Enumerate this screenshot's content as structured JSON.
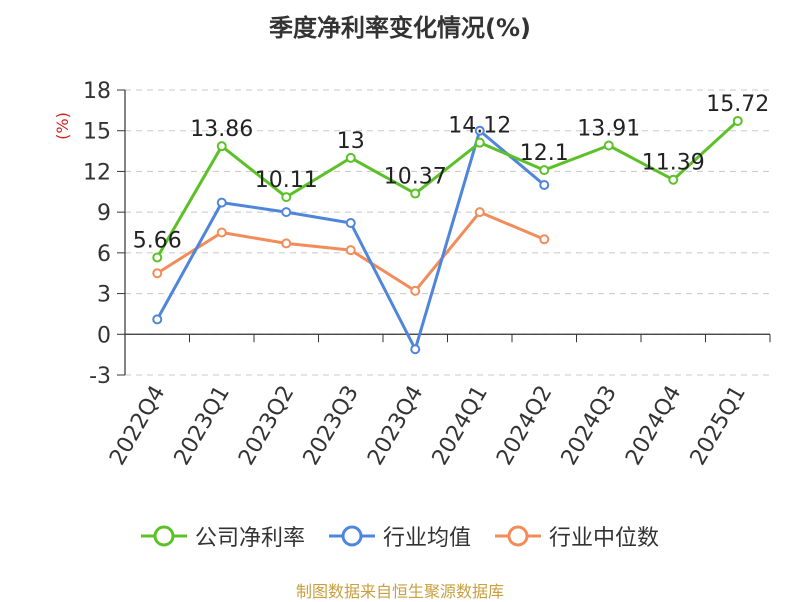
{
  "chart_data": {
    "type": "line",
    "title": "季度净利率变化情况(%)",
    "ylabel": "(%)",
    "xlabel": "",
    "ylim": [
      -3,
      18
    ],
    "yticks": [
      -3,
      0,
      3,
      6,
      9,
      12,
      15,
      18
    ],
    "grid": true,
    "legend_position": "bottom",
    "categories": [
      "2022Q4",
      "2023Q1",
      "2023Q2",
      "2023Q3",
      "2023Q4",
      "2024Q1",
      "2024Q2",
      "2024Q3",
      "2024Q4",
      "2025Q1"
    ],
    "series": [
      {
        "name": "公司净利率",
        "color": "#5cc128",
        "show_labels": true,
        "values": [
          5.66,
          13.86,
          10.11,
          13,
          10.37,
          14.12,
          12.1,
          13.91,
          11.39,
          15.72
        ]
      },
      {
        "name": "行业均值",
        "color": "#4f86db",
        "show_labels": false,
        "values": [
          1.1,
          9.7,
          9.0,
          8.2,
          -1.1,
          15.0,
          11.0,
          null,
          null,
          null
        ]
      },
      {
        "name": "行业中位数",
        "color": "#f28c5a",
        "show_labels": false,
        "values": [
          4.5,
          7.5,
          6.7,
          6.2,
          3.2,
          9.0,
          7.0,
          null,
          null,
          null
        ]
      }
    ]
  },
  "source_note": "制图数据来自恒生聚源数据库"
}
